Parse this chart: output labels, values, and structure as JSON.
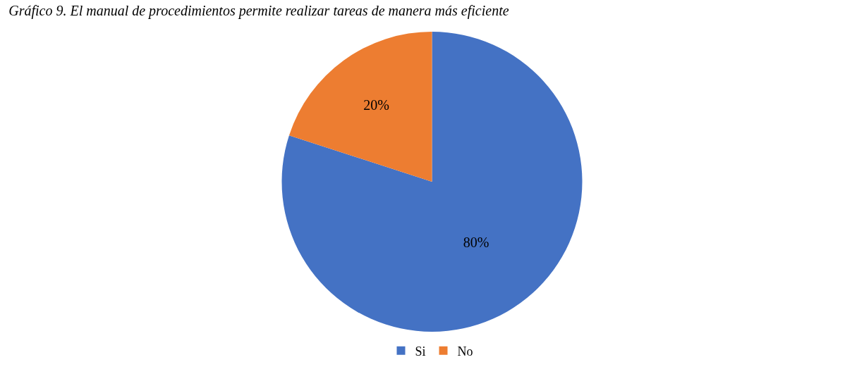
{
  "chart_data": {
    "type": "pie",
    "title": "Gráfico 9. El manual de procedimientos permite realizar tareas de manera más eficiente",
    "categories": [
      "Si",
      "No"
    ],
    "values": [
      80,
      20
    ],
    "colors": [
      "#4472c4",
      "#ed7d31"
    ],
    "value_labels": [
      "80%",
      "20%"
    ],
    "legend": "bottom"
  }
}
